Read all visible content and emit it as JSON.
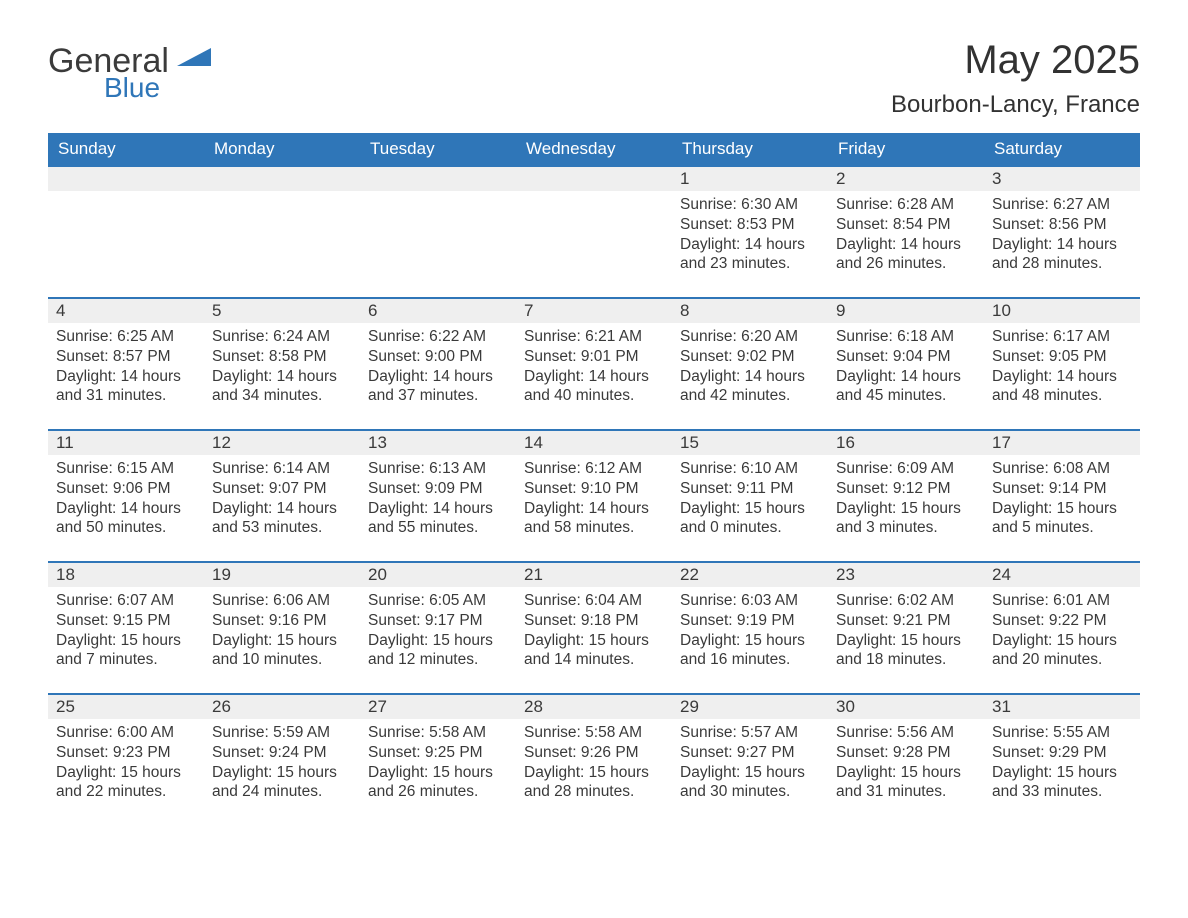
{
  "brand": {
    "word1": "General",
    "word2": "Blue",
    "text_color": "#3b3b3b",
    "accent_color": "#2f76b8"
  },
  "title": {
    "month": "May 2025",
    "location": "Bourbon-Lancy, France",
    "month_fontsize": 40,
    "location_fontsize": 24
  },
  "calendar": {
    "header_bg": "#2f76b8",
    "header_fg": "#ffffff",
    "daynum_bg": "#efefef",
    "row_border_color": "#2f76b8",
    "text_color": "#3a3a3a",
    "body_fontsize": 15.5,
    "daynum_fontsize": 17,
    "columns": [
      "Sunday",
      "Monday",
      "Tuesday",
      "Wednesday",
      "Thursday",
      "Friday",
      "Saturday"
    ],
    "weeks": [
      [
        {
          "empty": true
        },
        {
          "empty": true
        },
        {
          "empty": true
        },
        {
          "empty": true
        },
        {
          "day": "1",
          "sunrise": "Sunrise: 6:30 AM",
          "sunset": "Sunset: 8:53 PM",
          "daylight": "Daylight: 14 hours and 23 minutes."
        },
        {
          "day": "2",
          "sunrise": "Sunrise: 6:28 AM",
          "sunset": "Sunset: 8:54 PM",
          "daylight": "Daylight: 14 hours and 26 minutes."
        },
        {
          "day": "3",
          "sunrise": "Sunrise: 6:27 AM",
          "sunset": "Sunset: 8:56 PM",
          "daylight": "Daylight: 14 hours and 28 minutes."
        }
      ],
      [
        {
          "day": "4",
          "sunrise": "Sunrise: 6:25 AM",
          "sunset": "Sunset: 8:57 PM",
          "daylight": "Daylight: 14 hours and 31 minutes."
        },
        {
          "day": "5",
          "sunrise": "Sunrise: 6:24 AM",
          "sunset": "Sunset: 8:58 PM",
          "daylight": "Daylight: 14 hours and 34 minutes."
        },
        {
          "day": "6",
          "sunrise": "Sunrise: 6:22 AM",
          "sunset": "Sunset: 9:00 PM",
          "daylight": "Daylight: 14 hours and 37 minutes."
        },
        {
          "day": "7",
          "sunrise": "Sunrise: 6:21 AM",
          "sunset": "Sunset: 9:01 PM",
          "daylight": "Daylight: 14 hours and 40 minutes."
        },
        {
          "day": "8",
          "sunrise": "Sunrise: 6:20 AM",
          "sunset": "Sunset: 9:02 PM",
          "daylight": "Daylight: 14 hours and 42 minutes."
        },
        {
          "day": "9",
          "sunrise": "Sunrise: 6:18 AM",
          "sunset": "Sunset: 9:04 PM",
          "daylight": "Daylight: 14 hours and 45 minutes."
        },
        {
          "day": "10",
          "sunrise": "Sunrise: 6:17 AM",
          "sunset": "Sunset: 9:05 PM",
          "daylight": "Daylight: 14 hours and 48 minutes."
        }
      ],
      [
        {
          "day": "11",
          "sunrise": "Sunrise: 6:15 AM",
          "sunset": "Sunset: 9:06 PM",
          "daylight": "Daylight: 14 hours and 50 minutes."
        },
        {
          "day": "12",
          "sunrise": "Sunrise: 6:14 AM",
          "sunset": "Sunset: 9:07 PM",
          "daylight": "Daylight: 14 hours and 53 minutes."
        },
        {
          "day": "13",
          "sunrise": "Sunrise: 6:13 AM",
          "sunset": "Sunset: 9:09 PM",
          "daylight": "Daylight: 14 hours and 55 minutes."
        },
        {
          "day": "14",
          "sunrise": "Sunrise: 6:12 AM",
          "sunset": "Sunset: 9:10 PM",
          "daylight": "Daylight: 14 hours and 58 minutes."
        },
        {
          "day": "15",
          "sunrise": "Sunrise: 6:10 AM",
          "sunset": "Sunset: 9:11 PM",
          "daylight": "Daylight: 15 hours and 0 minutes."
        },
        {
          "day": "16",
          "sunrise": "Sunrise: 6:09 AM",
          "sunset": "Sunset: 9:12 PM",
          "daylight": "Daylight: 15 hours and 3 minutes."
        },
        {
          "day": "17",
          "sunrise": "Sunrise: 6:08 AM",
          "sunset": "Sunset: 9:14 PM",
          "daylight": "Daylight: 15 hours and 5 minutes."
        }
      ],
      [
        {
          "day": "18",
          "sunrise": "Sunrise: 6:07 AM",
          "sunset": "Sunset: 9:15 PM",
          "daylight": "Daylight: 15 hours and 7 minutes."
        },
        {
          "day": "19",
          "sunrise": "Sunrise: 6:06 AM",
          "sunset": "Sunset: 9:16 PM",
          "daylight": "Daylight: 15 hours and 10 minutes."
        },
        {
          "day": "20",
          "sunrise": "Sunrise: 6:05 AM",
          "sunset": "Sunset: 9:17 PM",
          "daylight": "Daylight: 15 hours and 12 minutes."
        },
        {
          "day": "21",
          "sunrise": "Sunrise: 6:04 AM",
          "sunset": "Sunset: 9:18 PM",
          "daylight": "Daylight: 15 hours and 14 minutes."
        },
        {
          "day": "22",
          "sunrise": "Sunrise: 6:03 AM",
          "sunset": "Sunset: 9:19 PM",
          "daylight": "Daylight: 15 hours and 16 minutes."
        },
        {
          "day": "23",
          "sunrise": "Sunrise: 6:02 AM",
          "sunset": "Sunset: 9:21 PM",
          "daylight": "Daylight: 15 hours and 18 minutes."
        },
        {
          "day": "24",
          "sunrise": "Sunrise: 6:01 AM",
          "sunset": "Sunset: 9:22 PM",
          "daylight": "Daylight: 15 hours and 20 minutes."
        }
      ],
      [
        {
          "day": "25",
          "sunrise": "Sunrise: 6:00 AM",
          "sunset": "Sunset: 9:23 PM",
          "daylight": "Daylight: 15 hours and 22 minutes."
        },
        {
          "day": "26",
          "sunrise": "Sunrise: 5:59 AM",
          "sunset": "Sunset: 9:24 PM",
          "daylight": "Daylight: 15 hours and 24 minutes."
        },
        {
          "day": "27",
          "sunrise": "Sunrise: 5:58 AM",
          "sunset": "Sunset: 9:25 PM",
          "daylight": "Daylight: 15 hours and 26 minutes."
        },
        {
          "day": "28",
          "sunrise": "Sunrise: 5:58 AM",
          "sunset": "Sunset: 9:26 PM",
          "daylight": "Daylight: 15 hours and 28 minutes."
        },
        {
          "day": "29",
          "sunrise": "Sunrise: 5:57 AM",
          "sunset": "Sunset: 9:27 PM",
          "daylight": "Daylight: 15 hours and 30 minutes."
        },
        {
          "day": "30",
          "sunrise": "Sunrise: 5:56 AM",
          "sunset": "Sunset: 9:28 PM",
          "daylight": "Daylight: 15 hours and 31 minutes."
        },
        {
          "day": "31",
          "sunrise": "Sunrise: 5:55 AM",
          "sunset": "Sunset: 9:29 PM",
          "daylight": "Daylight: 15 hours and 33 minutes."
        }
      ]
    ]
  }
}
